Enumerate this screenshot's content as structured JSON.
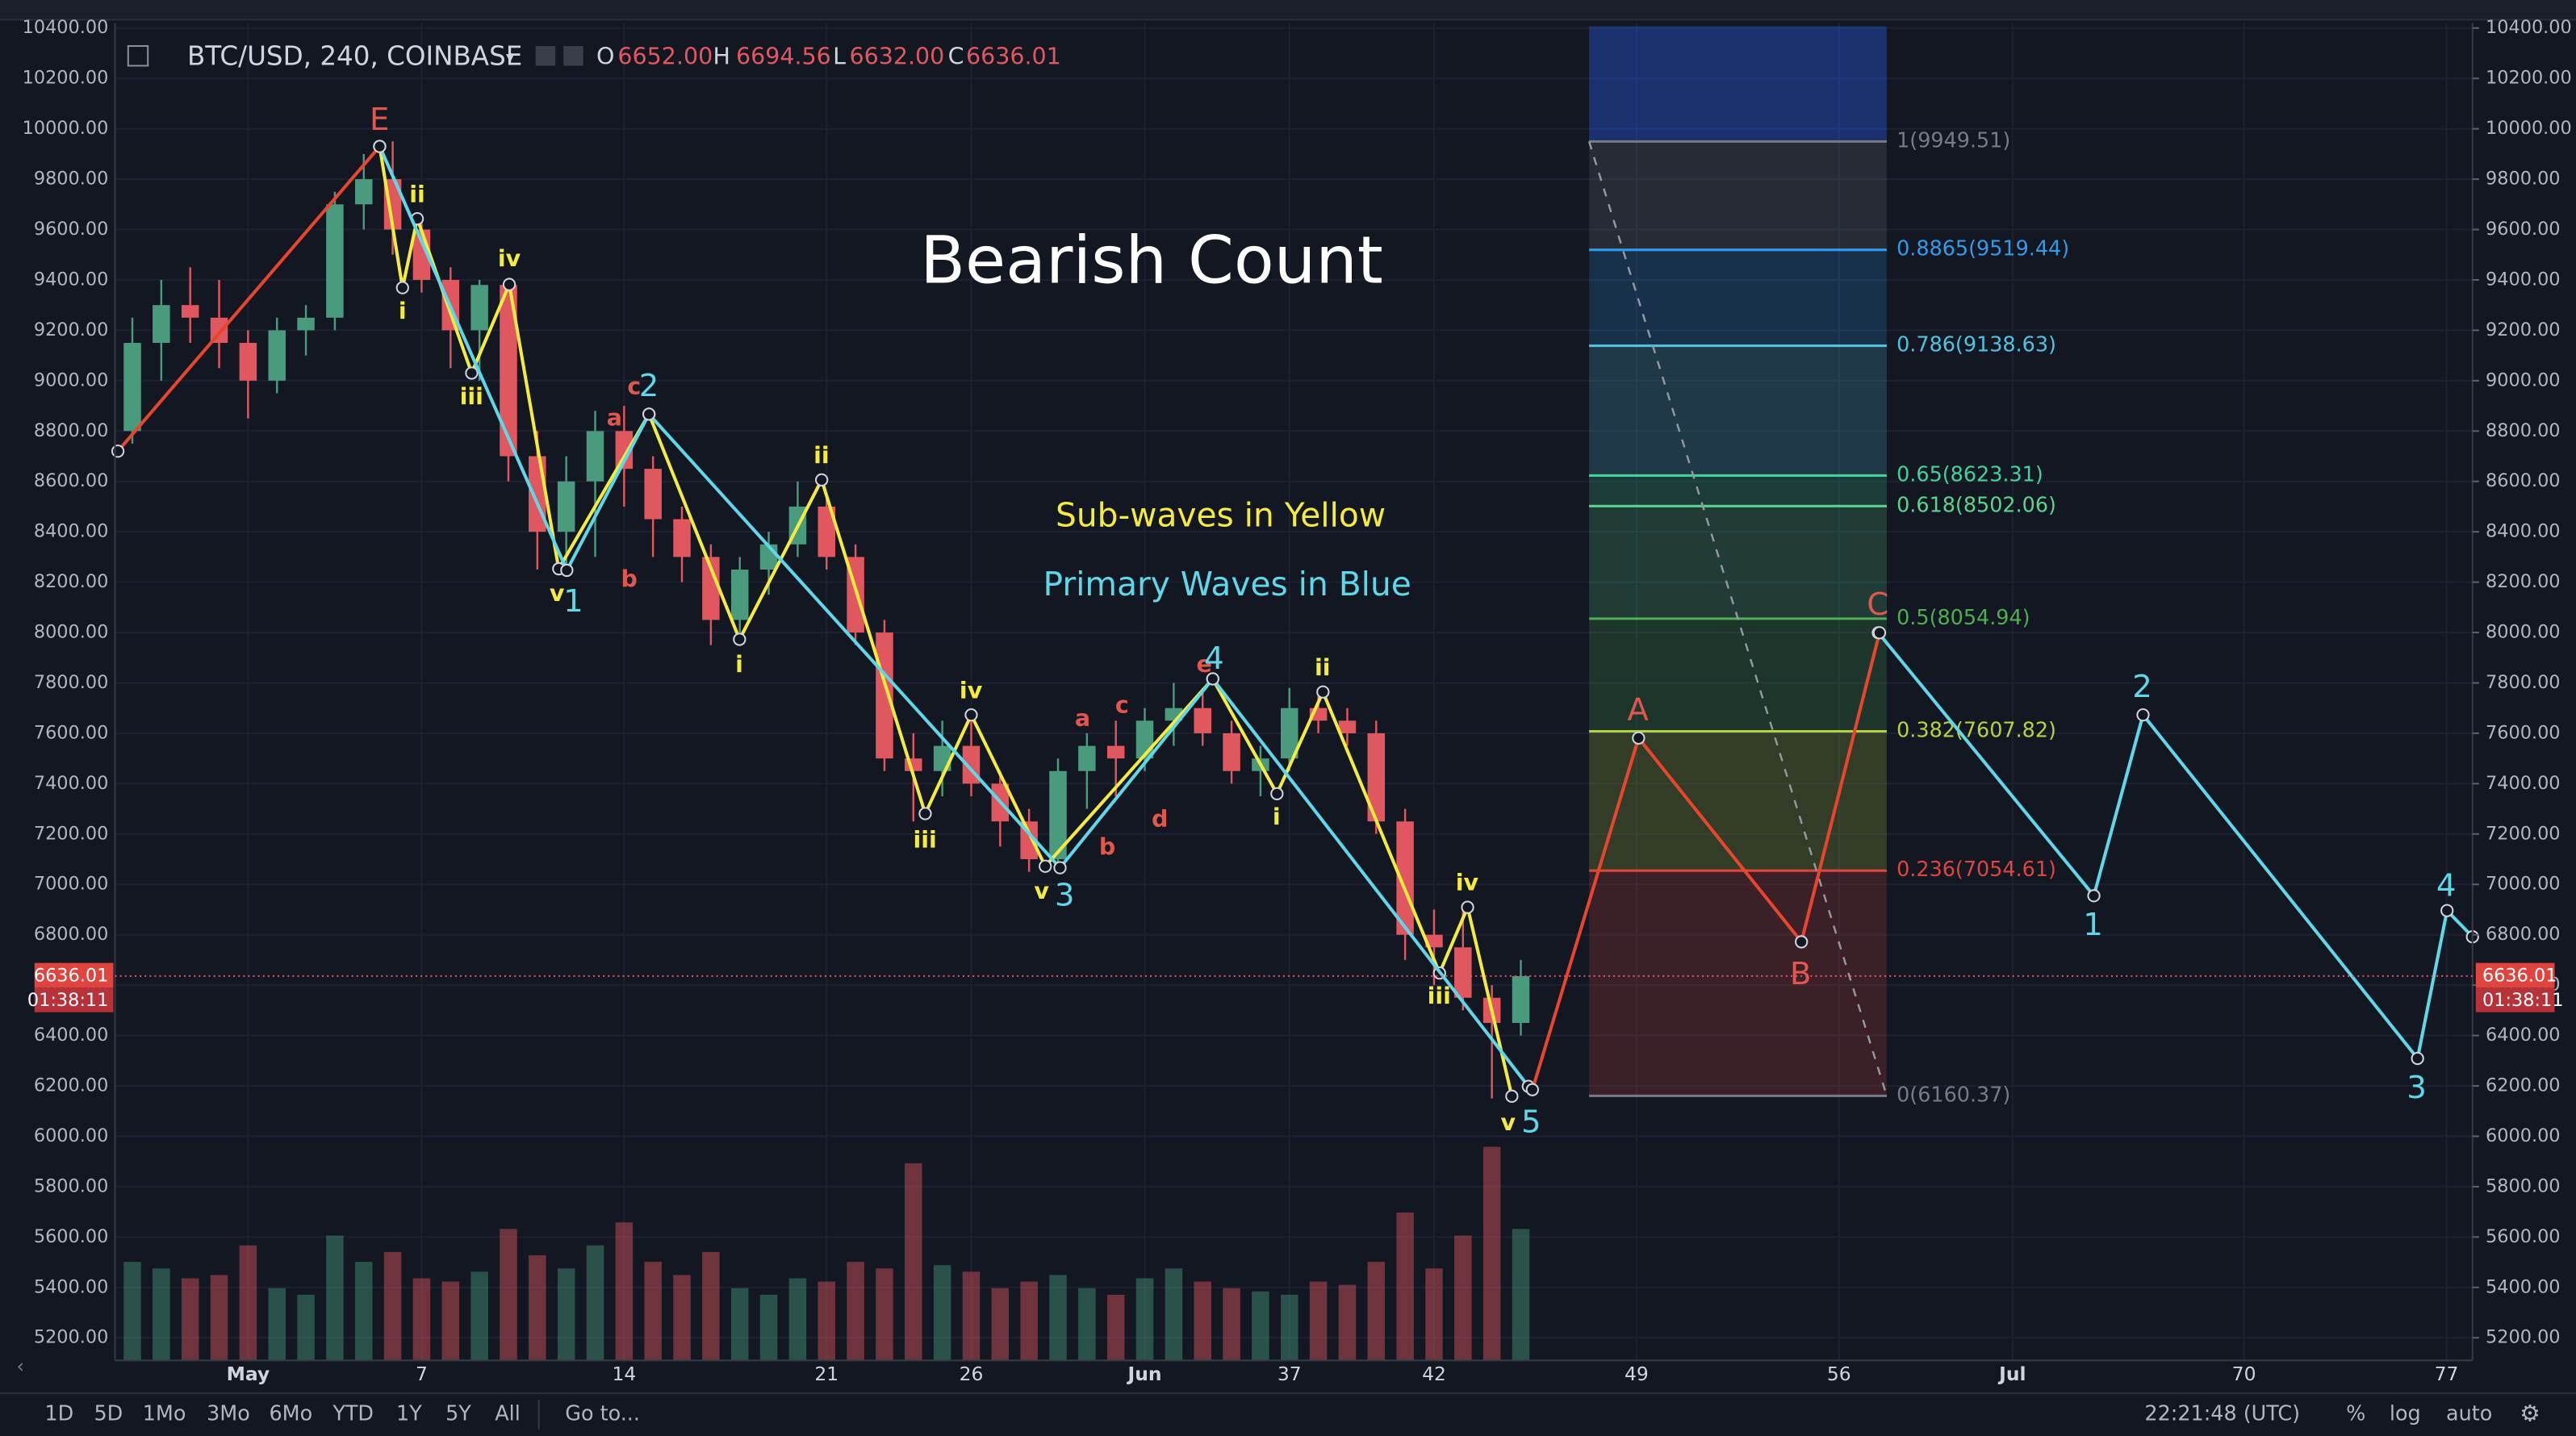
{
  "header": {
    "symbol": "BTC/USD, 240, COINBASE",
    "ohlc": [
      {
        "label": "O",
        "value": "6652.00"
      },
      {
        "label": "H",
        "value": "6694.56"
      },
      {
        "label": "L",
        "value": "6632.00"
      },
      {
        "label": "C",
        "value": "6636.01"
      }
    ]
  },
  "chart_data": {
    "type": "candlestick",
    "title": "Bearish Count",
    "annotations": [
      "Sub-waves in Yellow",
      "Primary Waves in Blue"
    ],
    "x": [
      -3,
      -2,
      -1,
      0,
      1,
      2,
      3,
      4,
      5,
      6,
      7,
      8,
      9,
      10,
      11,
      12,
      13,
      14,
      15,
      16,
      17,
      18,
      19,
      20,
      21,
      22,
      23,
      24,
      25,
      26,
      27,
      28,
      29,
      30,
      31,
      32,
      33,
      34,
      35,
      36,
      37,
      38,
      39,
      40,
      41,
      42,
      43,
      44,
      45
    ],
    "open": [
      8800,
      9150,
      9300,
      9250,
      9150,
      9000,
      9200,
      9250,
      9700,
      9800,
      9600,
      9400,
      9200,
      9380,
      8700,
      8400,
      8600,
      8800,
      8650,
      8450,
      8300,
      8050,
      8250,
      8350,
      8500,
      8300,
      8000,
      7500,
      7450,
      7550,
      7400,
      7250,
      7100,
      7450,
      7550,
      7500,
      7650,
      7700,
      7600,
      7450,
      7500,
      7700,
      7650,
      7600,
      7250,
      6800,
      6750,
      6550,
      6450
    ],
    "high": [
      9250,
      9400,
      9450,
      9400,
      9200,
      9250,
      9300,
      9750,
      9900,
      9950,
      9650,
      9450,
      9400,
      9400,
      8800,
      8700,
      8880,
      8900,
      8700,
      8500,
      8350,
      8300,
      8400,
      8600,
      8550,
      8350,
      8050,
      7600,
      7650,
      7650,
      7450,
      7300,
      7500,
      7600,
      7650,
      7700,
      7800,
      7780,
      7650,
      7550,
      7780,
      7750,
      7700,
      7650,
      7300,
      6900,
      6900,
      6600,
      6700
    ],
    "low": [
      8750,
      9000,
      9150,
      9050,
      8850,
      8950,
      9100,
      9200,
      9600,
      9500,
      9350,
      9050,
      9000,
      8600,
      8250,
      8230,
      8300,
      8500,
      8300,
      8200,
      7950,
      8000,
      8150,
      8300,
      8250,
      7950,
      7450,
      7250,
      7350,
      7350,
      7150,
      7050,
      7050,
      7300,
      7350,
      7450,
      7550,
      7550,
      7400,
      7350,
      7450,
      7600,
      7550,
      7200,
      6700,
      6600,
      6500,
      6150,
      6400
    ],
    "close": [
      9150,
      9300,
      9250,
      9150,
      9000,
      9200,
      9250,
      9700,
      9800,
      9600,
      9400,
      9200,
      9380,
      8700,
      8400,
      8600,
      8800,
      8650,
      8450,
      8300,
      8050,
      8250,
      8350,
      8500,
      8300,
      8000,
      7500,
      7450,
      7550,
      7400,
      7250,
      7100,
      7450,
      7550,
      7500,
      7650,
      7700,
      7600,
      7450,
      7500,
      7700,
      7650,
      7600,
      7250,
      6800,
      6750,
      6550,
      6450,
      6636.01
    ],
    "volume": [
      30,
      28,
      25,
      26,
      35,
      22,
      20,
      38,
      30,
      33,
      25,
      24,
      27,
      40,
      32,
      28,
      35,
      42,
      30,
      26,
      33,
      22,
      20,
      25,
      24,
      30,
      28,
      60,
      29,
      27,
      22,
      24,
      26,
      22,
      20,
      25,
      28,
      24,
      22,
      21,
      20,
      24,
      23,
      30,
      45,
      28,
      38,
      65,
      40
    ],
    "up_color": "#4a9a7e",
    "down_color": "#e0575f",
    "last_price": 6636.01,
    "countdown": "01:38:11",
    "waves": [
      {
        "color": "#f5eb3c",
        "x": [
          5.55,
          6.34,
          6.85,
          8.73,
          10.03,
          11.74,
          14.86,
          17.99,
          20.83,
          24.41,
          26.0,
          28.56,
          34.35,
          36.57,
          38.16,
          42.19,
          43.16,
          44.69
        ],
        "values": [
          9930,
          9369,
          9643,
          9030,
          9382,
          8253,
          8867,
          7973,
          8606,
          7281,
          7673,
          7072,
          7816,
          7360,
          7764,
          6648,
          6909,
          6159
        ]
      },
      {
        "color": "#5ed8e8",
        "x": [
          5.55,
          12.02,
          14.86,
          29.07,
          34.35,
          45.26
        ],
        "values": [
          9930,
          8247,
          8867,
          7066,
          7816,
          6198
        ]
      },
      {
        "color": "#5ed8e8",
        "x": [
          57.36,
          64.81,
          66.51,
          76.0,
          77.02,
          77.9
        ],
        "values": [
          7999,
          6955,
          7673,
          6309,
          6896,
          6792
        ]
      },
      {
        "color": "#e8452f",
        "x": [
          -3.5,
          5.55
        ],
        "values": [
          8720,
          9930
        ]
      },
      {
        "color": "#e8452f",
        "x": [
          45.4,
          49.07,
          54.7,
          57.4
        ],
        "values": [
          6185,
          7581,
          6772,
          7999
        ]
      }
    ],
    "wave_labels": [
      {
        "color": "#e0574f",
        "labels": [
          "E",
          "c",
          "a",
          "b",
          "a",
          "c",
          "b",
          "d",
          "e",
          "A",
          "B",
          "C"
        ]
      },
      {
        "color": "#f5eb3c",
        "labels": [
          "ii",
          "i",
          "iv",
          "iii",
          "v",
          "ii",
          "i",
          "iii",
          "iv",
          "v",
          "ii",
          "i",
          "iv",
          "iii",
          "v"
        ]
      },
      {
        "color": "#5ed8e8",
        "labels": [
          "1",
          "2",
          "3",
          "4",
          "5",
          "1",
          "2",
          "3",
          "4"
        ]
      }
    ],
    "fib": {
      "x": [
        47.36,
        57.65
      ],
      "levels": [
        {
          "value": 9949.51,
          "label": "1(9949.51)",
          "color": "#787b86"
        },
        {
          "value": 9519.44,
          "label": "0.8865(9519.44)",
          "color": "#2f9bea"
        },
        {
          "value": 9138.63,
          "label": "0.786(9138.63)",
          "color": "#4ec3e0"
        },
        {
          "value": 8623.31,
          "label": "0.65(8623.31)",
          "color": "#3fd39c"
        },
        {
          "value": 8502.06,
          "label": "0.618(8502.06)",
          "color": "#5cd38a"
        },
        {
          "value": 8054.94,
          "label": "0.5(8054.94)",
          "color": "#4caf50"
        },
        {
          "value": 7607.82,
          "label": "0.382(7607.82)",
          "color": "#b5d33c"
        },
        {
          "value": 7054.61,
          "label": "0.236(7054.61)",
          "color": "#e0443e"
        },
        {
          "value": 6160.37,
          "label": "0(6160.37)",
          "color": "#787b86"
        }
      ]
    },
    "xlim": [
      -3.6,
      77.9
    ],
    "xticks": [
      {
        "value": 1,
        "label": "May"
      },
      7,
      14,
      21,
      26,
      {
        "value": 32,
        "label": "Jun"
      },
      37,
      42,
      49,
      56,
      {
        "value": 62,
        "label": "Jul"
      },
      70,
      77
    ],
    "xtick_labels_at": null,
    "ylim": [
      5110,
      10420
    ],
    "yticks": [
      {
        "value": 5200,
        "label": "5200.00"
      },
      {
        "value": 5400,
        "label": "5400.00"
      },
      {
        "value": 5600,
        "label": "5600.00"
      },
      {
        "value": 5800,
        "label": "5800.00"
      },
      {
        "value": 6000,
        "label": "6000.00"
      },
      {
        "value": 6200,
        "label": "6200.00"
      },
      {
        "value": 6400,
        "label": "6400.00"
      },
      {
        "value": 6600,
        "label": "6600.00"
      },
      {
        "value": 6800,
        "label": "6800.00"
      },
      {
        "value": 7000,
        "label": "7000.00"
      },
      {
        "value": 7200,
        "label": "7200.00"
      },
      {
        "value": 7400,
        "label": "7400.00"
      },
      {
        "value": 7600,
        "label": "7600.00"
      },
      {
        "value": 7800,
        "label": "7800.00"
      },
      {
        "value": 8000,
        "label": "8000.00"
      },
      {
        "value": 8200,
        "label": "8200.00"
      },
      {
        "value": 8400,
        "label": "8400.00"
      },
      {
        "value": 8600,
        "label": "8600.00"
      },
      {
        "value": 8800,
        "label": "8800.00"
      },
      {
        "value": 9000,
        "label": "9000.00"
      },
      {
        "value": 9200,
        "label": "9200.00"
      },
      {
        "value": 9400,
        "label": "9400.00"
      },
      {
        "value": 9600,
        "label": "9600.00"
      },
      {
        "value": 9800,
        "label": "9800.00"
      },
      {
        "value": 10000,
        "label": "10000.00"
      },
      {
        "value": 10200,
        "label": "10200.00"
      },
      {
        "value": 10400,
        "label": "10400.00"
      }
    ],
    "grid": true
  },
  "bottom_bar": {
    "ranges": [
      "1D",
      "5D",
      "1Mo",
      "3Mo",
      "6Mo",
      "YTD",
      "1Y",
      "5Y",
      "All"
    ],
    "go_to": "Go to...",
    "clock": "22:21:48 (UTC)",
    "options": [
      "%",
      "log",
      "auto"
    ]
  }
}
